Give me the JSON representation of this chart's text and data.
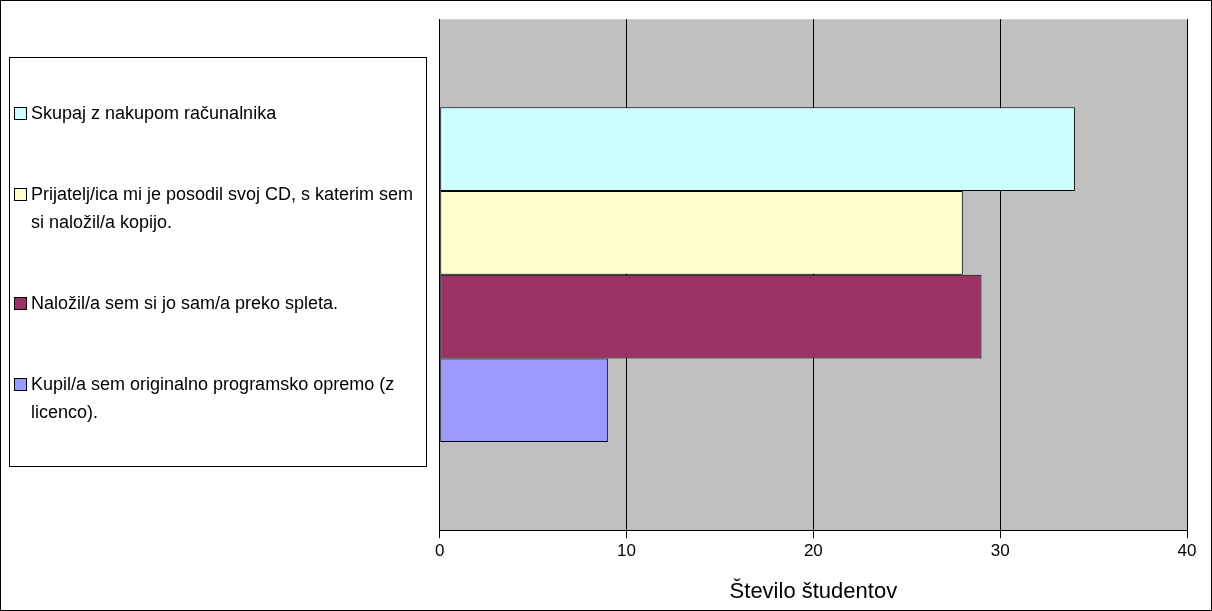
{
  "chart_data": {
    "type": "bar",
    "orientation": "horizontal",
    "categories": [
      null
    ],
    "xlabel": "Število študentov",
    "series": [
      {
        "name": "Skupaj z nakupom računalnika",
        "color": "#ccffff",
        "values": [
          34
        ]
      },
      {
        "name": "Prijatelj/ica mi je posodil svoj CD, s katerim sem si naložil/a kopijo.",
        "color": "#ffffcc",
        "values": [
          28
        ]
      },
      {
        "name": "Naložil/a sem si jo sam/a  preko spleta.",
        "color": "#993366",
        "values": [
          29
        ]
      },
      {
        "name": "Kupil/a sem originalno programsko opremo (z licenco).",
        "color": "#9999ff",
        "values": [
          9
        ]
      }
    ],
    "xlim": [
      0,
      40
    ],
    "xticks": [
      0,
      10,
      20,
      30,
      40
    ],
    "grid": "x",
    "legend": "left"
  }
}
